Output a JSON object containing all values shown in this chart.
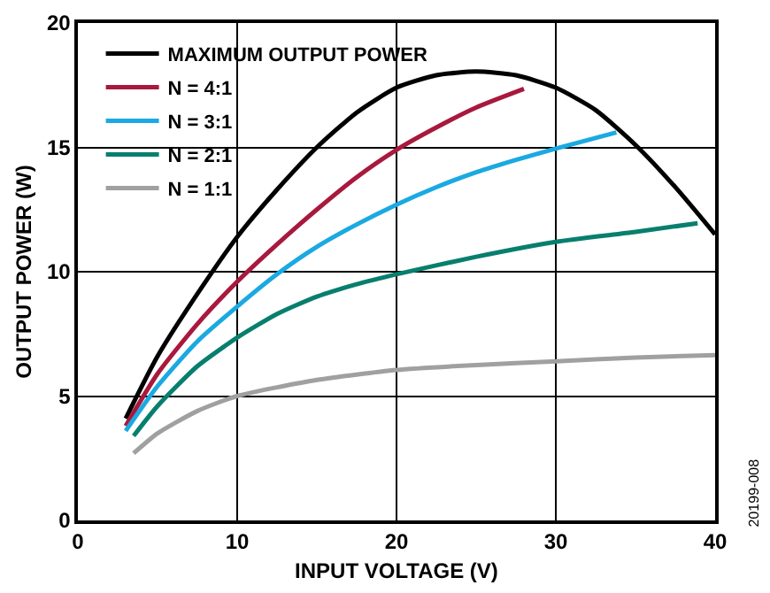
{
  "chart_data": {
    "type": "line",
    "xlabel": "INPUT VOLTAGE (V)",
    "ylabel": "OUTPUT POWER (W)",
    "xlim": [
      0,
      40
    ],
    "xticks": [
      0,
      10,
      20,
      30,
      40
    ],
    "ylim": [
      0,
      20
    ],
    "yticks": [
      0,
      5,
      10,
      15,
      20
    ],
    "grid": true,
    "legend": "top left",
    "marker": "none",
    "line_style": "solid",
    "annotations": [
      "20199-008"
    ],
    "series": [
      {
        "name": "MAXIMUM OUTPUT POWER",
        "color": "#000000",
        "x": [
          3,
          5,
          7.7,
          10,
          12.5,
          15,
          17.5,
          20,
          22.5,
          25,
          27.5,
          30,
          32.5,
          35,
          37.5,
          40
        ],
        "values": [
          4.1,
          6.6,
          9.3,
          11.4,
          13.3,
          15.0,
          16.4,
          17.4,
          17.9,
          18.05,
          17.9,
          17.4,
          16.5,
          15.1,
          13.4,
          11.5
        ]
      },
      {
        "name": "N = 4:1",
        "color": "#a8193d",
        "x": [
          3,
          5,
          7.5,
          10,
          12.5,
          15,
          17.5,
          20,
          22.5,
          25,
          28
        ],
        "values": [
          3.8,
          5.9,
          7.9,
          9.6,
          11.1,
          12.5,
          13.8,
          14.9,
          15.8,
          16.6,
          17.35
        ]
      },
      {
        "name": "N = 3:1",
        "color": "#1ba9e1",
        "x": [
          3,
          5,
          7.5,
          10,
          12.5,
          15,
          17.5,
          20,
          22.5,
          25,
          27.5,
          30,
          33.8
        ],
        "values": [
          3.6,
          5.4,
          7.2,
          8.6,
          9.9,
          11.0,
          11.9,
          12.7,
          13.4,
          14.0,
          14.5,
          14.95,
          15.6
        ]
      },
      {
        "name": "N = 2:1",
        "color": "#087f6e",
        "x": [
          3.5,
          5,
          7.5,
          10,
          12.5,
          15,
          17.5,
          20,
          25,
          30,
          35,
          38.9
        ],
        "values": [
          3.4,
          4.6,
          6.2,
          7.35,
          8.3,
          9.0,
          9.5,
          9.9,
          10.6,
          11.2,
          11.6,
          11.95
        ]
      },
      {
        "name": "N = 1:1",
        "color": "#a0a0a0",
        "x": [
          3.5,
          5,
          7.5,
          10,
          15,
          20,
          25,
          30,
          35,
          40
        ],
        "values": [
          2.7,
          3.5,
          4.4,
          5.0,
          5.65,
          6.05,
          6.25,
          6.4,
          6.55,
          6.65
        ]
      }
    ]
  }
}
